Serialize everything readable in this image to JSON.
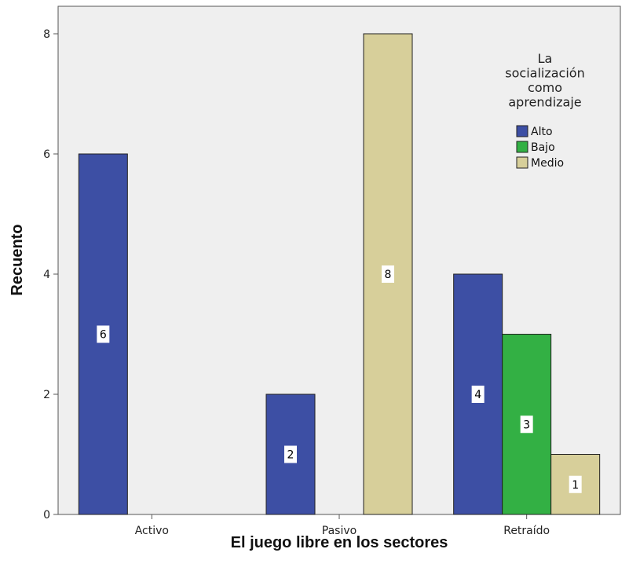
{
  "chart_data": {
    "type": "bar",
    "categories": [
      "Activo",
      "Pasivo",
      "Retraído"
    ],
    "series": [
      {
        "name": "Alto",
        "values": [
          6,
          2,
          4
        ],
        "color": "#3d4fa4",
        "data_labels": [
          "6",
          "2",
          "4"
        ]
      },
      {
        "name": "Bajo",
        "values": [
          0,
          0,
          3
        ],
        "color": "#33b044",
        "data_labels": [
          "",
          "",
          "3"
        ]
      },
      {
        "name": "Medio",
        "values": [
          0,
          8,
          1
        ],
        "color": "#d7cf9a",
        "data_labels": [
          "",
          "8",
          "1"
        ]
      }
    ],
    "xlabel": "El juego libre en los sectores",
    "ylabel": "Recuento",
    "ylim": [
      0,
      8
    ],
    "yticks": [
      "0",
      "2",
      "4",
      "6",
      "8"
    ],
    "legend": {
      "title_lines": [
        "La",
        "socialización",
        "como",
        "aprendizaje"
      ],
      "position": "top-right"
    },
    "plot_background": "#efefef",
    "grid": false
  }
}
